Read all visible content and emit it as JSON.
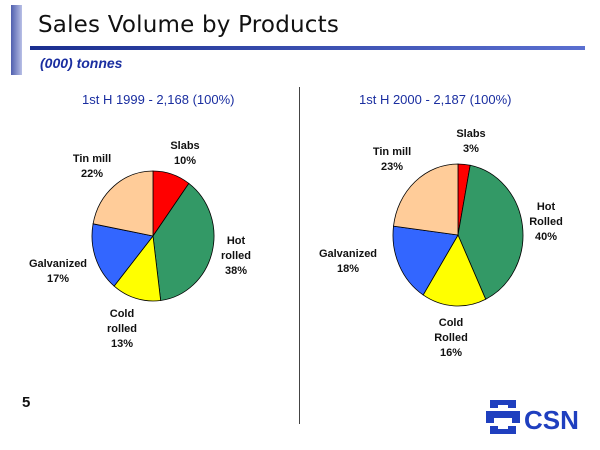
{
  "header": {
    "title": "Sales Volume by Products",
    "subtitle": "(000) tonnes"
  },
  "page_number": "5",
  "logo": {
    "text": "CSN"
  },
  "chart_data": [
    {
      "type": "pie",
      "title": "1st H 1999 - 2,168 (100%)",
      "slices": [
        {
          "name": "Slabs",
          "label": "Slabs\n10%",
          "value": 10,
          "color": "#ff0000"
        },
        {
          "name": "Hot rolled",
          "label": "Hot\nrolled\n38%",
          "value": 38,
          "color": "#339966"
        },
        {
          "name": "Cold rolled",
          "label": "Cold\nrolled\n13%",
          "value": 13,
          "color": "#ffff00"
        },
        {
          "name": "Galvanized",
          "label": "Galvanized\n17%",
          "value": 17,
          "color": "#3366ff"
        },
        {
          "name": "Tin mill",
          "label": "Tin mill\n22%",
          "value": 22,
          "color": "#ffcc99"
        }
      ]
    },
    {
      "type": "pie",
      "title": "1st H 2000 - 2,187 (100%)",
      "slices": [
        {
          "name": "Slabs",
          "label": "Slabs\n3%",
          "value": 3,
          "color": "#ff0000"
        },
        {
          "name": "Hot Rolled",
          "label": "Hot\nRolled\n40%",
          "value": 40,
          "color": "#339966"
        },
        {
          "name": "Cold Rolled",
          "label": "Cold\nRolled\n16%",
          "value": 16,
          "color": "#ffff00"
        },
        {
          "name": "Galvanized",
          "label": "Galvanized\n18%",
          "value": 18,
          "color": "#3366ff"
        },
        {
          "name": "Tin mill",
          "label": "Tin mill\n23%",
          "value": 23,
          "color": "#ffcc99"
        }
      ]
    }
  ]
}
